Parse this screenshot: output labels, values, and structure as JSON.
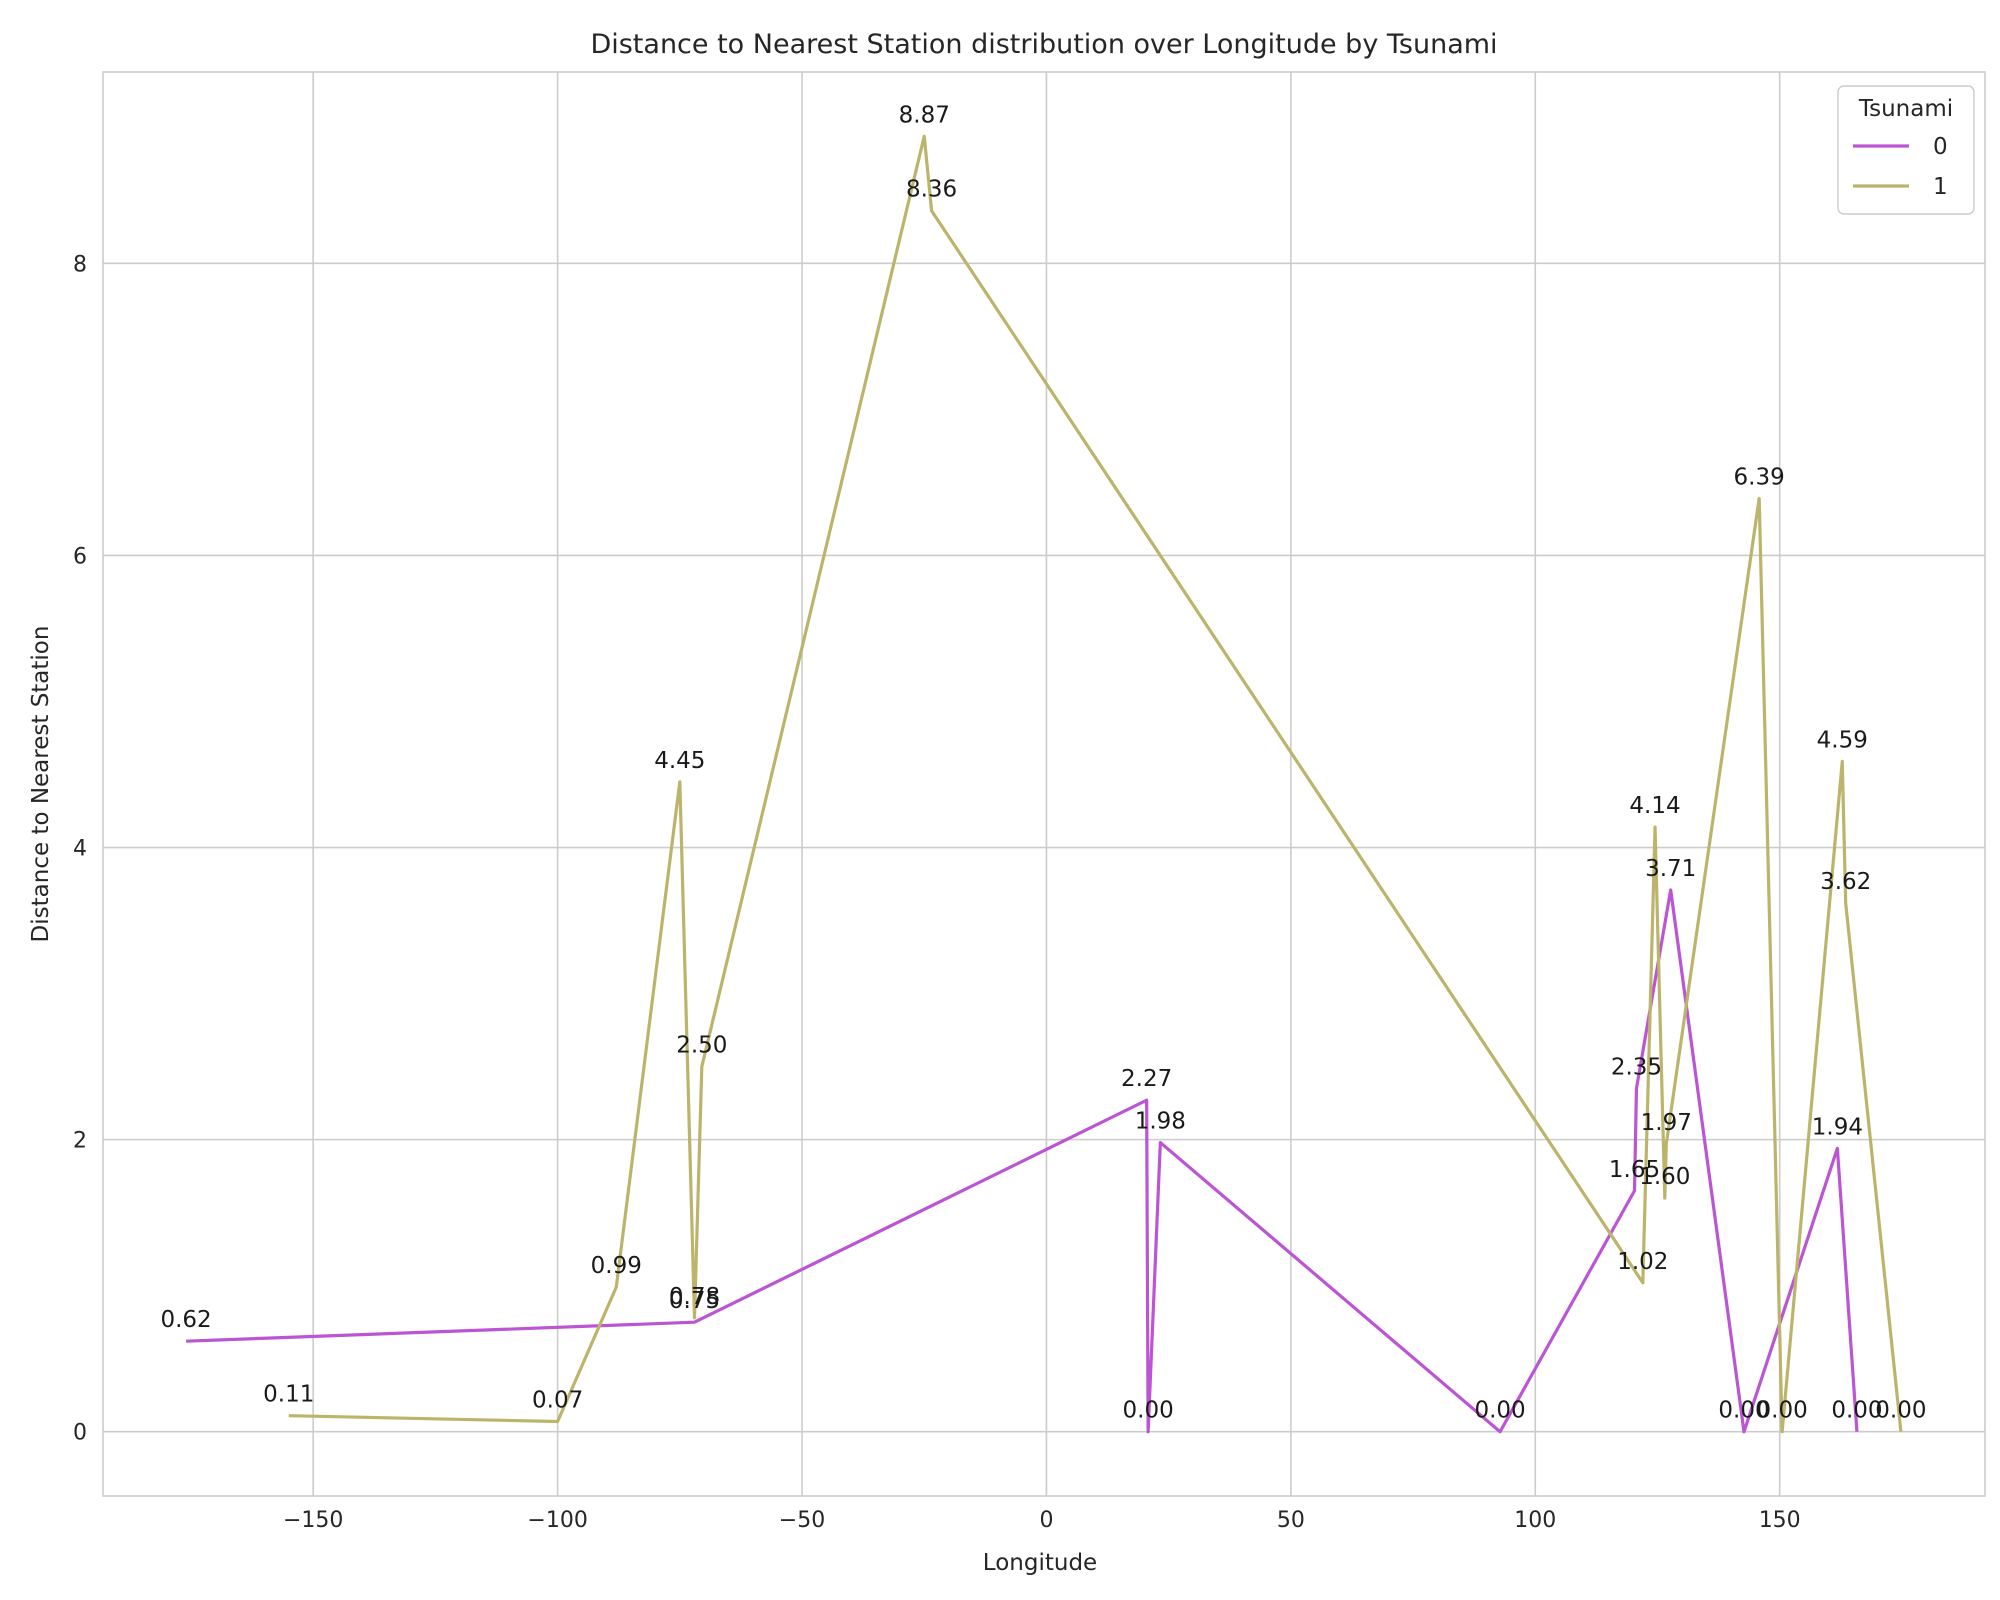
{
  "chart_data": {
    "type": "line",
    "title": "Distance to Nearest Station distribution over Longitude by Tsunami",
    "xlabel": "Longitude",
    "ylabel": "Distance to Nearest Station",
    "xlim": [
      -193,
      192
    ],
    "ylim": [
      -0.44,
      9.31
    ],
    "xticks": [
      -150,
      -100,
      -50,
      0,
      50,
      100,
      150
    ],
    "yticks": [
      0,
      2,
      4,
      6,
      8
    ],
    "grid": true,
    "legend": {
      "title": "Tsunami",
      "placement": "top-right"
    },
    "series": [
      {
        "name": "0",
        "color": "#bb55d4",
        "points": [
          {
            "x": -176.0,
            "y": 0.62,
            "label": "0.62"
          },
          {
            "x": -72.0,
            "y": 0.75,
            "label": "0.75"
          },
          {
            "x": 20.5,
            "y": 2.27,
            "label": "2.27"
          },
          {
            "x": 20.8,
            "y": 0.0,
            "label": "0.00"
          },
          {
            "x": 23.3,
            "y": 1.98,
            "label": "1.98"
          },
          {
            "x": 92.8,
            "y": 0.0,
            "label": "0.00"
          },
          {
            "x": 120.3,
            "y": 1.65,
            "label": "1.65"
          },
          {
            "x": 120.7,
            "y": 2.35,
            "label": "2.35"
          },
          {
            "x": 127.7,
            "y": 3.71,
            "label": "3.71"
          },
          {
            "x": 142.7,
            "y": 0.0,
            "label": "0.00"
          },
          {
            "x": 161.8,
            "y": 1.94,
            "label": "1.94"
          },
          {
            "x": 165.8,
            "y": 0.0,
            "label": "0.00"
          }
        ]
      },
      {
        "name": "1",
        "color": "#bcb46a",
        "points": [
          {
            "x": -155.0,
            "y": 0.11,
            "label": "0.11"
          },
          {
            "x": -100.0,
            "y": 0.07,
            "label": "0.07"
          },
          {
            "x": -88.0,
            "y": 0.99,
            "label": "0.99"
          },
          {
            "x": -75.0,
            "y": 4.45,
            "label": "4.45"
          },
          {
            "x": -72.0,
            "y": 0.78,
            "label": "0.78"
          },
          {
            "x": -70.5,
            "y": 2.5,
            "label": "2.50"
          },
          {
            "x": -25.0,
            "y": 8.87,
            "label": "8.87"
          },
          {
            "x": -23.5,
            "y": 8.36,
            "label": "8.36"
          },
          {
            "x": 122.0,
            "y": 1.02,
            "label": "1.02"
          },
          {
            "x": 124.5,
            "y": 4.14,
            "label": "4.14"
          },
          {
            "x": 126.5,
            "y": 1.6,
            "label": "1.60"
          },
          {
            "x": 126.8,
            "y": 1.97,
            "label": "1.97"
          },
          {
            "x": 145.8,
            "y": 6.39,
            "label": "6.39"
          },
          {
            "x": 150.5,
            "y": 0.0,
            "label": "0.00"
          },
          {
            "x": 162.8,
            "y": 4.59,
            "label": "4.59"
          },
          {
            "x": 163.5,
            "y": 3.62,
            "label": "3.62"
          },
          {
            "x": 174.8,
            "y": 0.0,
            "label": "0.00"
          }
        ]
      }
    ]
  }
}
